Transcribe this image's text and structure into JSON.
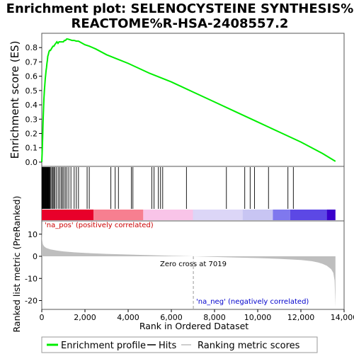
{
  "chart_data": {
    "title_line1": "Enrichment plot: SELENOCYSTEINE SYNTHESIS%",
    "title_line2": "REACTOME%R-HSA-2408557.2",
    "es_panel": {
      "type": "line",
      "ylabel": "Enrichment score (ES)",
      "ylim": [
        -0.03,
        0.9
      ],
      "yticks": [
        0.0,
        0.1,
        0.2,
        0.3,
        0.4,
        0.5,
        0.6,
        0.7,
        0.8
      ],
      "ytick_labels": [
        "0.0",
        "0.1",
        "0.2",
        "0.3",
        "0.4",
        "0.5",
        "0.6",
        "0.7",
        "0.8"
      ],
      "line_color": "#00ee00",
      "x": [
        0,
        15,
        30,
        45,
        60,
        80,
        100,
        120,
        140,
        160,
        180,
        200,
        220,
        240,
        260,
        280,
        300,
        330,
        360,
        400,
        440,
        480,
        520,
        560,
        600,
        650,
        700,
        750,
        800,
        900,
        1000,
        1050,
        1100,
        1150,
        1200,
        1300,
        1400,
        1500,
        1600,
        1700,
        2000,
        2200,
        2500,
        3000,
        3500,
        4000,
        5000,
        6000,
        7000,
        8000,
        9000,
        10000,
        11000,
        12000,
        13000,
        13600
      ],
      "y": [
        0.0,
        0.06,
        0.12,
        0.2,
        0.28,
        0.36,
        0.44,
        0.5,
        0.54,
        0.58,
        0.61,
        0.64,
        0.66,
        0.69,
        0.71,
        0.74,
        0.75,
        0.77,
        0.78,
        0.78,
        0.79,
        0.8,
        0.81,
        0.81,
        0.82,
        0.83,
        0.84,
        0.83,
        0.84,
        0.84,
        0.84,
        0.85,
        0.85,
        0.86,
        0.86,
        0.855,
        0.85,
        0.85,
        0.845,
        0.845,
        0.82,
        0.81,
        0.79,
        0.75,
        0.72,
        0.69,
        0.62,
        0.56,
        0.49,
        0.42,
        0.35,
        0.28,
        0.21,
        0.14,
        0.06,
        0.005
      ]
    },
    "hits_panel": {
      "hit_positions": [
        10,
        30,
        50,
        70,
        90,
        110,
        130,
        150,
        170,
        190,
        210,
        230,
        250,
        270,
        290,
        310,
        330,
        350,
        380,
        420,
        470,
        520,
        560,
        610,
        680,
        760,
        830,
        900,
        960,
        1020,
        1090,
        1160,
        1250,
        1350,
        1500,
        1600,
        1700,
        2100,
        2200,
        3200,
        3400,
        3550,
        4150,
        4220,
        5100,
        5200,
        5400,
        5500,
        5600,
        6700,
        8550,
        9400,
        9650,
        9850,
        10500,
        11400,
        11650
      ],
      "color_bands": [
        {
          "start": 0,
          "end": 2400,
          "color": "#e8002a"
        },
        {
          "start": 2400,
          "end": 4700,
          "color": "#f77f90"
        },
        {
          "start": 4700,
          "end": 7000,
          "color": "#f9c4e8"
        },
        {
          "start": 7000,
          "end": 9300,
          "color": "#dcd6f7"
        },
        {
          "start": 9300,
          "end": 10700,
          "color": "#c8c5f3"
        },
        {
          "start": 10700,
          "end": 11500,
          "color": "#7f78ee"
        },
        {
          "start": 11500,
          "end": 13200,
          "color": "#5c48e5"
        },
        {
          "start": 13200,
          "end": 13600,
          "color": "#3a00cc"
        }
      ]
    },
    "metric_panel": {
      "type": "area",
      "ylabel": "Ranked list metric (PreRanked)",
      "xlabel": "Rank in Ordered Dataset",
      "ylim": [
        -24,
        16
      ],
      "yticks": [
        -20,
        -10,
        0,
        10
      ],
      "ytick_labels": [
        "-20",
        "-10",
        "0",
        "10"
      ],
      "xlim": [
        0,
        14000
      ],
      "xticks": [
        0,
        2000,
        4000,
        6000,
        8000,
        10000,
        12000,
        14000
      ],
      "xtick_labels": [
        "0",
        "2,000",
        "4,000",
        "6,000",
        "8,000",
        "10,000",
        "12,000",
        "14,000"
      ],
      "fill_color": "#bebebe",
      "x": [
        0,
        20,
        50,
        100,
        200,
        400,
        700,
        1000,
        1500,
        2000,
        3000,
        4000,
        5000,
        6000,
        7019,
        8000,
        9000,
        10000,
        11000,
        12000,
        12500,
        12800,
        13000,
        13200,
        13400,
        13500,
        13560,
        13600
      ],
      "y": [
        12,
        7.5,
        5.5,
        4.6,
        3.8,
        3.1,
        2.6,
        2.2,
        1.8,
        1.5,
        1.1,
        0.8,
        0.5,
        0.25,
        0.0,
        -0.3,
        -0.55,
        -0.8,
        -1.15,
        -1.7,
        -2.2,
        -2.8,
        -3.4,
        -4.3,
        -5.8,
        -7.5,
        -11,
        -23
      ],
      "pos_label": "'na_pos' (positively correlated)",
      "neg_label": "'na_neg' (negatively correlated)",
      "zero_cross_label": "Zero cross at 7019",
      "zero_cross": 7019
    },
    "legend": [
      {
        "label": "Enrichment profile",
        "color": "#00ee00"
      },
      {
        "label": "Hits",
        "color": "#000000"
      },
      {
        "label": "Ranking metric scores",
        "color": "#bebebe"
      }
    ]
  }
}
